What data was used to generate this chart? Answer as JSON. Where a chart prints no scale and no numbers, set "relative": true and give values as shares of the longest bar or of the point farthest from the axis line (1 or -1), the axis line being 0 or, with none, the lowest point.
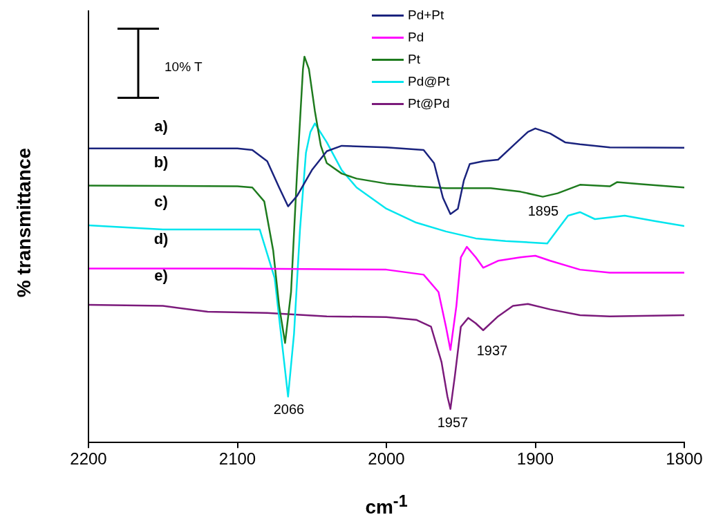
{
  "chart_data": {
    "type": "line",
    "xlabel": "cm$^{-1}$",
    "ylabel": "% transmittance",
    "relative": true,
    "xlim": [
      2200,
      1800
    ],
    "xticks": [
      2200,
      2100,
      2000,
      1900,
      1800
    ],
    "grid": false,
    "legend": "top right",
    "marker": "none",
    "line_style": "solid",
    "series": [
      {
        "name": "Pd+Pt",
        "color": "#1a237e",
        "x": [
          2200,
          2100,
          2090,
          2080,
          2072,
          2066,
          2060,
          2050,
          2040,
          2030,
          2000,
          1975,
          1968,
          1962,
          1957,
          1952,
          1948,
          1944,
          1935,
          1925,
          1915,
          1905,
          1900,
          1890,
          1880,
          1870,
          1850,
          1800
        ],
        "values": [
          0.762,
          0.762,
          0.758,
          0.729,
          0.661,
          0.612,
          0.639,
          0.706,
          0.755,
          0.769,
          0.765,
          0.758,
          0.724,
          0.634,
          0.592,
          0.606,
          0.679,
          0.722,
          0.729,
          0.733,
          0.769,
          0.805,
          0.814,
          0.801,
          0.778,
          0.773,
          0.765,
          0.764
        ]
      },
      {
        "name": "Pd",
        "color": "#ff00ff",
        "x": [
          2200,
          2100,
          2000,
          1975,
          1965,
          1960,
          1957,
          1953,
          1950,
          1946,
          1940,
          1935,
          1925,
          1910,
          1900,
          1890,
          1870,
          1850,
          1800
        ],
        "values": [
          0.451,
          0.451,
          0.448,
          0.435,
          0.39,
          0.3,
          0.24,
          0.354,
          0.48,
          0.507,
          0.48,
          0.453,
          0.471,
          0.48,
          0.484,
          0.471,
          0.448,
          0.44,
          0.44
        ]
      },
      {
        "name": "Pt",
        "color": "#1e7b1e",
        "x": [
          2200,
          2100,
          2090,
          2082,
          2076,
          2072,
          2068,
          2064,
          2060,
          2056,
          2055,
          2052,
          2048,
          2044,
          2040,
          2030,
          2020,
          2000,
          1980,
          1960,
          1930,
          1910,
          1895,
          1885,
          1870,
          1850,
          1845,
          1830,
          1800
        ],
        "values": [
          0.666,
          0.664,
          0.661,
          0.625,
          0.498,
          0.354,
          0.258,
          0.39,
          0.697,
          0.968,
          1,
          0.968,
          0.859,
          0.769,
          0.724,
          0.697,
          0.684,
          0.671,
          0.664,
          0.659,
          0.659,
          0.65,
          0.637,
          0.646,
          0.668,
          0.664,
          0.675,
          0.67,
          0.661
        ]
      },
      {
        "name": "Pd@Pt",
        "color": "#00e5ee",
        "x": [
          2200,
          2150,
          2085,
          2075,
          2066,
          2062,
          2058,
          2054,
          2051,
          2048,
          2040,
          2030,
          2020,
          2000,
          1980,
          1960,
          1940,
          1920,
          1892,
          1885,
          1878,
          1870,
          1860,
          1840,
          1820,
          1800
        ],
        "values": [
          0.563,
          0.552,
          0.552,
          0.426,
          0.119,
          0.282,
          0.552,
          0.751,
          0.805,
          0.827,
          0.778,
          0.706,
          0.661,
          0.606,
          0.57,
          0.547,
          0.529,
          0.522,
          0.516,
          0.552,
          0.588,
          0.597,
          0.579,
          0.588,
          0.574,
          0.561
        ]
      },
      {
        "name": "Pt@Pd",
        "color": "#7b1a7b",
        "x": [
          2200,
          2150,
          2120,
          2080,
          2040,
          2000,
          1980,
          1970,
          1963,
          1959,
          1957,
          1954,
          1950,
          1945,
          1940,
          1935,
          1925,
          1915,
          1905,
          1890,
          1870,
          1850,
          1800
        ],
        "values": [
          0.357,
          0.354,
          0.339,
          0.336,
          0.327,
          0.325,
          0.318,
          0.3,
          0.209,
          0.119,
          0.087,
          0.173,
          0.3,
          0.323,
          0.309,
          0.291,
          0.327,
          0.354,
          0.359,
          0.345,
          0.33,
          0.327,
          0.33
        ]
      }
    ],
    "annotations": [
      "10% T",
      "a)",
      "b)",
      "c)",
      "d)",
      "e)",
      "2066",
      "1957",
      "1937",
      "1895"
    ]
  }
}
